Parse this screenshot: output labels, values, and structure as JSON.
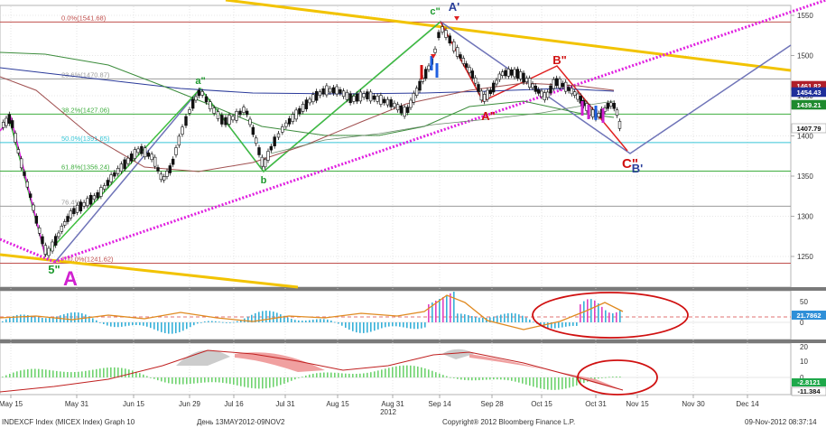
{
  "chart_data": {
    "type": "candlestick",
    "price_axis": {
      "ticks": [
        1550,
        1500,
        1450,
        1400,
        1350,
        1300,
        1250
      ],
      "range": [
        1215,
        1570
      ]
    },
    "x_axis": {
      "tick_labels": [
        "May 15",
        "May 31",
        "Jun 15",
        "Jun 29",
        "Jul 16",
        "Jul 31",
        "Aug 15",
        "Aug 31",
        "Sep 14",
        "Sep 28",
        "Oct 15",
        "Oct 31",
        "Nov 15",
        "Nov 30",
        "Dec 14"
      ],
      "year_label": "2012"
    },
    "fib_levels": [
      {
        "label": "0.0%(1541.68)",
        "value": 1541.68,
        "color": "#c0504d"
      },
      {
        "label": "23.6%(1470.87)",
        "value": 1470.87,
        "color": "#9c9c9c"
      },
      {
        "label": "38.2%(1427.06)",
        "value": 1427.06,
        "color": "#3fae3f"
      },
      {
        "label": "50.0%(1391.65)",
        "value": 1391.65,
        "color": "#36c5d6"
      },
      {
        "label": "61.8%(1356.24)",
        "value": 1356.24,
        "color": "#3fae3f"
      },
      {
        "label": "76.4%",
        "value": 1312.5,
        "color": "#9c9c9c"
      },
      {
        "label": "100.0%(1241.62)",
        "value": 1241.62,
        "color": "#c0504d"
      }
    ],
    "price_tags": [
      {
        "label": "1461.82",
        "value": 1461.82,
        "color": "#b01f2a"
      },
      {
        "label": "1454.43",
        "value": 1454.43,
        "color": "#1f2f9a"
      },
      {
        "label": "1439.21",
        "value": 1439.21,
        "color": "#1e8a2e"
      },
      {
        "label": "1407.79",
        "value": 1407.79,
        "color": "#ffffff"
      }
    ],
    "wave_labels": [
      {
        "text": "A",
        "color": "#d020d0",
        "size": 22
      },
      {
        "text": "5\"",
        "color": "#1e9a2e",
        "size": 13
      },
      {
        "text": "a\"",
        "color": "#1e9a2e",
        "size": 11
      },
      {
        "text": "b",
        "color": "#1e9a2e",
        "size": 11
      },
      {
        "text": "c\"",
        "color": "#1e9a2e",
        "size": 11
      },
      {
        "text": "A'",
        "color": "#2a3e9a",
        "size": 13
      },
      {
        "text": "A\"",
        "color": "#d01010",
        "size": 13
      },
      {
        "text": "B\"",
        "color": "#d01010",
        "size": 13
      },
      {
        "text": "C\"",
        "color": "#d01010",
        "size": 15
      },
      {
        "text": "B'",
        "color": "#2a3e9a",
        "size": 13
      }
    ],
    "osc1": {
      "ticks": [
        50,
        0
      ],
      "tag_label": "21.7862"
    },
    "osc2": {
      "ticks": [
        20,
        10,
        0
      ],
      "tag_labels": [
        "-2.8121",
        "-11.384"
      ]
    }
  },
  "footer": {
    "instrument": "INDEXCF Index (MICEX Index) Graph 10",
    "range": "День 13MAY2012-09NOV2",
    "copyright": "Copyright® 2012 Bloomberg Finance L.P.",
    "timestamp": "09-Nov-2012 08:37:14"
  }
}
